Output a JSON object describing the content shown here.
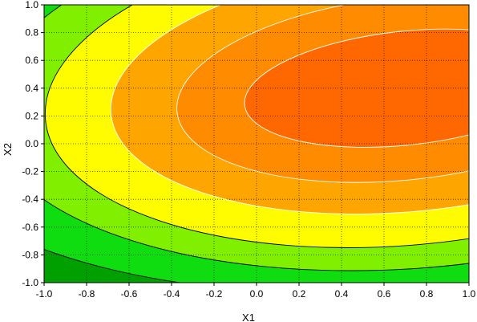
{
  "chart_data": {
    "type": "contour",
    "xlabel": "X1",
    "ylabel": "X2",
    "xlim": [
      -1.0,
      1.0
    ],
    "ylim": [
      -1.0,
      1.0
    ],
    "xticks": [
      "-1.0",
      "-0.8",
      "-0.6",
      "-0.4",
      "-0.2",
      "0.0",
      "0.2",
      "0.4",
      "0.6",
      "0.8",
      "1.0"
    ],
    "yticks": [
      "1.0",
      "0.8",
      "0.6",
      "0.4",
      "0.2",
      "0.0",
      "-0.2",
      "-0.4",
      "-0.6",
      "-0.8",
      "-1.0"
    ],
    "grid": true,
    "grid_style": "dotted",
    "surface": {
      "description": "quadratic response surface, maximum near X1=0.7, X2=0.4",
      "center": [
        0.7,
        0.4
      ],
      "levels_from_outside_in": [
        {
          "color": "#00a000",
          "boundary_line": "#000000"
        },
        {
          "color": "#10dd10",
          "boundary_line": "#000000"
        },
        {
          "color": "#80f000",
          "boundary_line": "#000000"
        },
        {
          "color": "#fffc00",
          "boundary_line": "#000000"
        },
        {
          "color": "#ffa500",
          "boundary_line": "#ffffff"
        },
        {
          "color": "#ff8c00",
          "boundary_line": "#ffffff"
        },
        {
          "color": "#ff6800",
          "boundary_line": "#ffffff"
        }
      ]
    }
  }
}
